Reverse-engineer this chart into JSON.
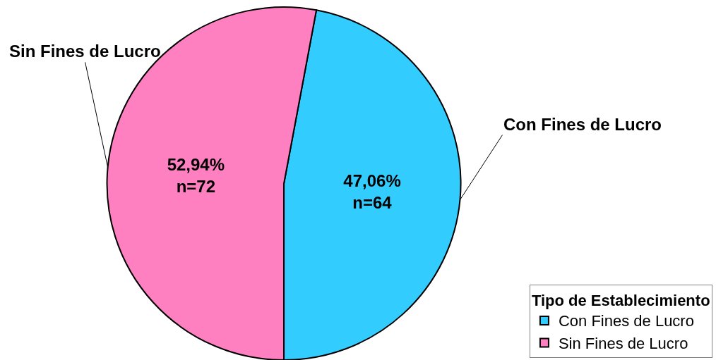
{
  "chart_data": {
    "type": "pie",
    "categories": [
      "Con Fines de Lucro",
      "Sin Fines de Lucro"
    ],
    "values": [
      64,
      72
    ],
    "colors": [
      "#33ccff",
      "#ff80c0"
    ],
    "value_labels": [
      "47,06%\nn=64",
      "52,94%\nn=72"
    ],
    "legend_title": "Tipo de Establecimiento",
    "legend": "bottom right"
  }
}
